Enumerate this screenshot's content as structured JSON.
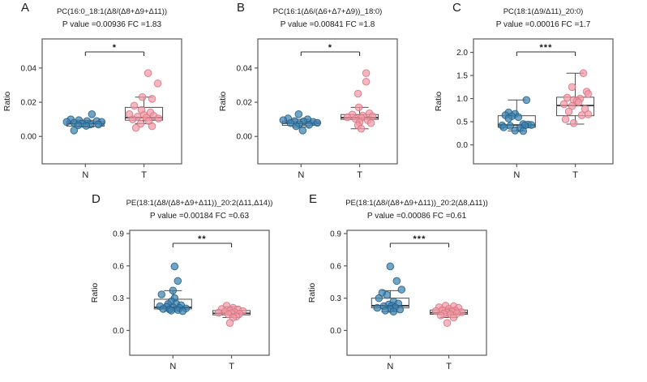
{
  "figure": {
    "background": "#ffffff",
    "ylabel": "Ratio",
    "x_categories": [
      "N",
      "T"
    ],
    "colors": {
      "n_fill": "#3f81ad",
      "n_stroke": "#1d5f8c",
      "t_fill": "#f29aa6",
      "t_stroke": "#d9717f",
      "box_stroke": "#4d4d4d",
      "median_stroke": "#333333",
      "frame_stroke": "#595959",
      "text": "#1a1a1a"
    }
  },
  "chart_data": [
    {
      "type": "boxplot-jitter",
      "panel": "A",
      "title": "PC(16:0_18:1(Δ8/(Δ8+Δ9+Δ11))",
      "subtitle": "P value =0.00936 FC =1.83",
      "significance": "*",
      "ylabel": "Ratio",
      "categories": [
        "N",
        "T"
      ],
      "ylim": [
        -0.016,
        0.057
      ],
      "yticks": [
        0,
        0.02,
        0.04
      ],
      "ytick_labels": [
        "0.00",
        "0.02",
        "0.04"
      ],
      "groups": [
        {
          "name": "N",
          "box": {
            "q1": 0.006,
            "median": 0.0075,
            "q3": 0.0087,
            "whisker_low": 0.0055,
            "whisker_high": 0.0095
          },
          "points": [
            [
              8,
              0.013
            ],
            [
              -18,
              0.01
            ],
            [
              -8,
              0.0095
            ],
            [
              2,
              0.009
            ],
            [
              14,
              0.009
            ],
            [
              20,
              0.0085
            ],
            [
              -23,
              0.0085
            ],
            [
              -14,
              0.008
            ],
            [
              -4,
              0.0075
            ],
            [
              6,
              0.007
            ],
            [
              16,
              0.007
            ],
            [
              -9,
              0.0065
            ],
            [
              1,
              0.0062
            ],
            [
              -14,
              0.0035
            ]
          ]
        },
        {
          "name": "T",
          "box": {
            "q1": 0.0095,
            "median": 0.011,
            "q3": 0.017,
            "whisker_low": 0.0075,
            "whisker_high": 0.023
          },
          "points": [
            [
              5,
              0.037
            ],
            [
              17,
              0.031
            ],
            [
              -2,
              0.023
            ],
            [
              10,
              0.022
            ],
            [
              -12,
              0.018
            ],
            [
              -3,
              0.0155
            ],
            [
              8,
              0.014
            ],
            [
              -18,
              0.013
            ],
            [
              0,
              0.0125
            ],
            [
              12,
              0.012
            ],
            [
              -8,
              0.0115
            ],
            [
              3,
              0.011
            ],
            [
              18,
              0.0105
            ],
            [
              -14,
              0.01
            ],
            [
              6,
              0.009
            ],
            [
              -4,
              0.0075
            ],
            [
              10,
              0.006
            ],
            [
              -10,
              0.005
            ]
          ]
        }
      ]
    },
    {
      "type": "boxplot-jitter",
      "panel": "B",
      "title": "PC(16:1(Δ6/(Δ6+Δ7+Δ9))_18:0)",
      "subtitle": "P value =0.00841 FC =1.8",
      "significance": "*",
      "ylabel": "Ratio",
      "categories": [
        "N",
        "T"
      ],
      "ylim": [
        -0.016,
        0.057
      ],
      "yticks": [
        0,
        0.02,
        0.04
      ],
      "ytick_labels": [
        "0.00",
        "0.02",
        "0.04"
      ],
      "groups": [
        {
          "name": "N",
          "box": {
            "q1": 0.0065,
            "median": 0.0078,
            "q3": 0.009,
            "whisker_low": 0.0055,
            "whisker_high": 0.01
          },
          "points": [
            [
              -3,
              0.013
            ],
            [
              -16,
              0.0105
            ],
            [
              8,
              0.01
            ],
            [
              -22,
              0.0095
            ],
            [
              -8,
              0.009
            ],
            [
              3,
              0.0088
            ],
            [
              15,
              0.0085
            ],
            [
              20,
              0.008
            ],
            [
              -13,
              0.0078
            ],
            [
              -2,
              0.0072
            ],
            [
              10,
              0.0068
            ],
            [
              -6,
              0.006
            ],
            [
              2,
              0.0035
            ]
          ]
        },
        {
          "name": "T",
          "box": {
            "q1": 0.01,
            "median": 0.011,
            "q3": 0.0128,
            "whisker_low": 0.0045,
            "whisker_high": 0.017
          },
          "points": [
            [
              8,
              0.037
            ],
            [
              8,
              0.032
            ],
            [
              -2,
              0.025
            ],
            [
              -1,
              0.017
            ],
            [
              12,
              0.0135
            ],
            [
              -9,
              0.0128
            ],
            [
              4,
              0.0122
            ],
            [
              16,
              0.0118
            ],
            [
              -15,
              0.0112
            ],
            [
              2,
              0.0108
            ],
            [
              -5,
              0.0103
            ],
            [
              10,
              0.0095
            ],
            [
              0,
              0.0082
            ],
            [
              14,
              0.0078
            ],
            [
              -2,
              0.0065
            ],
            [
              2,
              0.0045
            ]
          ]
        }
      ]
    },
    {
      "type": "boxplot-jitter",
      "panel": "C",
      "title": "PC(18:1(Δ9/Δ11)_20:0)",
      "subtitle": "P value =0.00016 FC =1.7",
      "significance": "***",
      "ylabel": "Ratio",
      "categories": [
        "N",
        "T"
      ],
      "ylim": [
        -0.41,
        2.29
      ],
      "yticks": [
        0,
        0.5,
        1.0,
        1.5,
        2.0
      ],
      "ytick_labels": [
        "0.0",
        "0.5",
        "1.0",
        "1.5",
        "2.0"
      ],
      "groups": [
        {
          "name": "N",
          "box": {
            "q1": 0.38,
            "median": 0.43,
            "q3": 0.63,
            "whisker_low": 0.3,
            "whisker_high": 0.97
          },
          "points": [
            [
              12,
              0.97
            ],
            [
              -10,
              0.7
            ],
            [
              -2,
              0.67
            ],
            [
              -14,
              0.64
            ],
            [
              -6,
              0.62
            ],
            [
              2,
              0.6
            ],
            [
              -10,
              0.57
            ],
            [
              8,
              0.45
            ],
            [
              14,
              0.44
            ],
            [
              18,
              0.43
            ],
            [
              -18,
              0.42
            ],
            [
              10,
              0.42
            ],
            [
              -8,
              0.41
            ],
            [
              -16,
              0.38
            ],
            [
              4,
              0.36
            ],
            [
              -2,
              0.31
            ],
            [
              8,
              0.3
            ]
          ]
        },
        {
          "name": "T",
          "box": {
            "q1": 0.63,
            "median": 0.85,
            "q3": 1.03,
            "whisker_low": 0.45,
            "whisker_high": 1.55
          },
          "points": [
            [
              10,
              1.55
            ],
            [
              -4,
              1.25
            ],
            [
              14,
              1.15
            ],
            [
              16,
              1.1
            ],
            [
              -10,
              1.02
            ],
            [
              6,
              1.0
            ],
            [
              -2,
              0.97
            ],
            [
              2,
              0.95
            ],
            [
              4,
              0.92
            ],
            [
              -14,
              0.88
            ],
            [
              -4,
              0.84
            ],
            [
              12,
              0.78
            ],
            [
              -8,
              0.72
            ],
            [
              16,
              0.66
            ],
            [
              8,
              0.64
            ],
            [
              -12,
              0.55
            ],
            [
              -2,
              0.47
            ]
          ]
        }
      ]
    },
    {
      "type": "boxplot-jitter",
      "panel": "D",
      "title": "PE(18:1(Δ8/(Δ8+Δ9+Δ11))_20:2(Δ11,Δ14))",
      "subtitle": "P value =0.00184 FC =0.63",
      "significance": "**",
      "ylabel": "Ratio",
      "categories": [
        "N",
        "T"
      ],
      "ylim": [
        -0.23,
        0.93
      ],
      "yticks": [
        0,
        0.3,
        0.6,
        0.9
      ],
      "ytick_labels": [
        "0.0",
        "0.3",
        "0.6",
        "0.9"
      ],
      "groups": [
        {
          "name": "N",
          "box": {
            "q1": 0.2,
            "median": 0.215,
            "q3": 0.29,
            "whisker_low": 0.18,
            "whisker_high": 0.37
          },
          "points": [
            [
              2,
              0.595
            ],
            [
              6,
              0.46
            ],
            [
              0,
              0.37
            ],
            [
              -14,
              0.335
            ],
            [
              2,
              0.3
            ],
            [
              -2,
              0.27
            ],
            [
              4,
              0.25
            ],
            [
              -6,
              0.245
            ],
            [
              10,
              0.235
            ],
            [
              -16,
              0.225
            ],
            [
              -8,
              0.22
            ],
            [
              0,
              0.215
            ],
            [
              8,
              0.21
            ],
            [
              16,
              0.205
            ],
            [
              -12,
              0.2
            ],
            [
              -4,
              0.195
            ],
            [
              6,
              0.19
            ],
            [
              -2,
              0.185
            ],
            [
              12,
              0.18
            ]
          ]
        },
        {
          "name": "T",
          "box": {
            "q1": 0.145,
            "median": 0.16,
            "q3": 0.185,
            "whisker_low": 0.12,
            "whisker_high": 0.22
          },
          "points": [
            [
              -6,
              0.23
            ],
            [
              2,
              0.21
            ],
            [
              -12,
              0.2
            ],
            [
              8,
              0.195
            ],
            [
              -2,
              0.185
            ],
            [
              14,
              0.18
            ],
            [
              -8,
              0.175
            ],
            [
              4,
              0.17
            ],
            [
              -16,
              0.165
            ],
            [
              0,
              0.16
            ],
            [
              10,
              0.155
            ],
            [
              -4,
              0.15
            ],
            [
              6,
              0.13
            ],
            [
              2,
              0.12
            ],
            [
              -2,
              0.07
            ]
          ]
        }
      ]
    },
    {
      "type": "boxplot-jitter",
      "panel": "E",
      "title": "PE(18:1(Δ8/(Δ8+Δ9+Δ11))_20:2(Δ8,Δ11))",
      "subtitle": "P value =0.00086 FC =0.61",
      "significance": "***",
      "ylabel": "Ratio",
      "categories": [
        "N",
        "T"
      ],
      "ylim": [
        -0.23,
        0.93
      ],
      "yticks": [
        0,
        0.3,
        0.6,
        0.9
      ],
      "ytick_labels": [
        "0.0",
        "0.3",
        "0.6",
        "0.9"
      ],
      "groups": [
        {
          "name": "N",
          "box": {
            "q1": 0.21,
            "median": 0.23,
            "q3": 0.3,
            "whisker_low": 0.175,
            "whisker_high": 0.37
          },
          "points": [
            [
              0,
              0.595
            ],
            [
              8,
              0.46
            ],
            [
              14,
              0.38
            ],
            [
              -10,
              0.35
            ],
            [
              -4,
              0.33
            ],
            [
              -14,
              0.3
            ],
            [
              4,
              0.27
            ],
            [
              10,
              0.25
            ],
            [
              -2,
              0.24
            ],
            [
              2,
              0.23
            ],
            [
              -8,
              0.225
            ],
            [
              6,
              0.215
            ],
            [
              -16,
              0.21
            ],
            [
              0,
              0.2
            ],
            [
              12,
              0.195
            ],
            [
              -6,
              0.185
            ],
            [
              4,
              0.175
            ]
          ]
        },
        {
          "name": "T",
          "box": {
            "q1": 0.15,
            "median": 0.165,
            "q3": 0.19,
            "whisker_low": 0.12,
            "whisker_high": 0.21
          },
          "points": [
            [
              -4,
              0.23
            ],
            [
              6,
              0.225
            ],
            [
              -12,
              0.215
            ],
            [
              12,
              0.21
            ],
            [
              0,
              0.2
            ],
            [
              -8,
              0.19
            ],
            [
              8,
              0.185
            ],
            [
              -16,
              0.18
            ],
            [
              4,
              0.175
            ],
            [
              16,
              0.17
            ],
            [
              -2,
              0.165
            ],
            [
              10,
              0.16
            ],
            [
              -6,
              0.155
            ],
            [
              2,
              0.15
            ],
            [
              -10,
              0.14
            ],
            [
              6,
              0.12
            ],
            [
              -2,
              0.07
            ]
          ]
        }
      ]
    }
  ]
}
